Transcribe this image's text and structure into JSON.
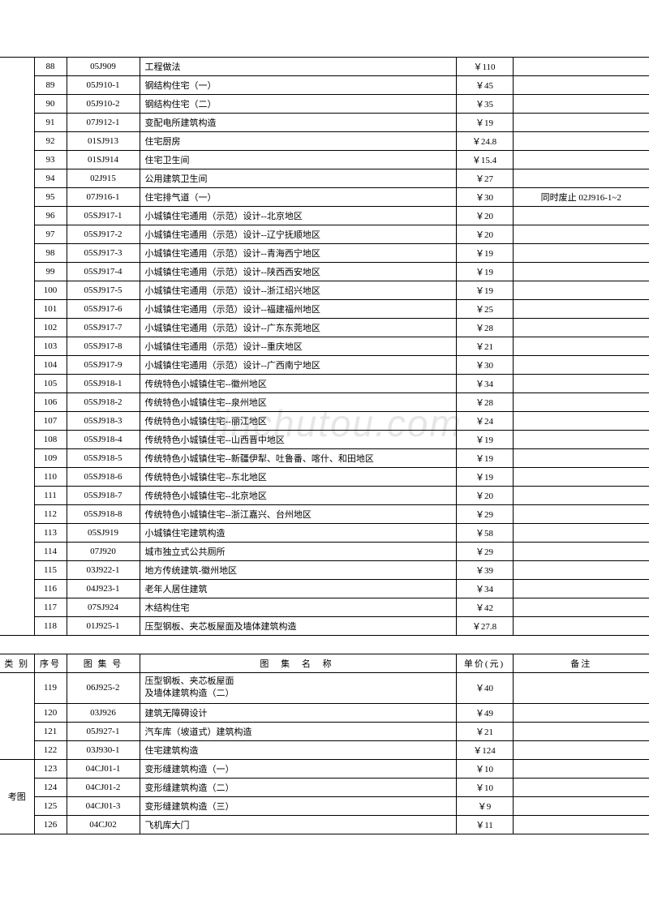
{
  "watermark": "jinchutou.com",
  "table1": {
    "rows": [
      {
        "idx": "88",
        "code": "05J909",
        "name": "工程做法",
        "price": "￥110",
        "note": ""
      },
      {
        "idx": "89",
        "code": "05J910-1",
        "name": "钢结构住宅（一）",
        "price": "￥45",
        "note": ""
      },
      {
        "idx": "90",
        "code": "05J910-2",
        "name": "钢结构住宅（二）",
        "price": "￥35",
        "note": ""
      },
      {
        "idx": "91",
        "code": "07J912-1",
        "name": "变配电所建筑构造",
        "price": "￥19",
        "note": ""
      },
      {
        "idx": "92",
        "code": "01SJ913",
        "name": "住宅厨房",
        "price": "￥24.8",
        "note": ""
      },
      {
        "idx": "93",
        "code": "01SJ914",
        "name": "住宅卫生间",
        "price": "￥15.4",
        "note": ""
      },
      {
        "idx": "94",
        "code": "02J915",
        "name": "公用建筑卫生间",
        "price": "￥27",
        "note": ""
      },
      {
        "idx": "95",
        "code": "07J916-1",
        "name": "住宅排气道（一）",
        "price": "￥30",
        "note": "同时废止 02J916-1~2"
      },
      {
        "idx": "96",
        "code": "05SJ917-1",
        "name": "小城镇住宅通用（示范）设计--北京地区",
        "price": "￥20",
        "note": ""
      },
      {
        "idx": "97",
        "code": "05SJ917-2",
        "name": "小城镇住宅通用（示范）设计--辽宁抚顺地区",
        "price": "￥20",
        "note": ""
      },
      {
        "idx": "98",
        "code": "05SJ917-3",
        "name": "小城镇住宅通用（示范）设计--青海西宁地区",
        "price": "￥19",
        "note": ""
      },
      {
        "idx": "99",
        "code": "05SJ917-4",
        "name": "小城镇住宅通用（示范）设计--陕西西安地区",
        "price": "￥19",
        "note": ""
      },
      {
        "idx": "100",
        "code": "05SJ917-5",
        "name": "小城镇住宅通用（示范）设计--浙江绍兴地区",
        "price": "￥19",
        "note": ""
      },
      {
        "idx": "101",
        "code": "05SJ917-6",
        "name": "小城镇住宅通用（示范）设计--福建福州地区",
        "price": "￥25",
        "note": ""
      },
      {
        "idx": "102",
        "code": "05SJ917-7",
        "name": "小城镇住宅通用（示范）设计--广东东莞地区",
        "price": "￥28",
        "note": ""
      },
      {
        "idx": "103",
        "code": "05SJ917-8",
        "name": "小城镇住宅通用（示范）设计--重庆地区",
        "price": "￥21",
        "note": ""
      },
      {
        "idx": "104",
        "code": "05SJ917-9",
        "name": "小城镇住宅通用（示范）设计--广西南宁地区",
        "price": "￥30",
        "note": ""
      },
      {
        "idx": "105",
        "code": "05SJ918-1",
        "name": "传统特色小城镇住宅--徽州地区",
        "price": "￥34",
        "note": ""
      },
      {
        "idx": "106",
        "code": "05SJ918-2",
        "name": "传统特色小城镇住宅--泉州地区",
        "price": "￥28",
        "note": ""
      },
      {
        "idx": "107",
        "code": "05SJ918-3",
        "name": "传统特色小城镇住宅--丽江地区",
        "price": "￥24",
        "note": ""
      },
      {
        "idx": "108",
        "code": "05SJ918-4",
        "name": "传统特色小城镇住宅--山西晋中地区",
        "price": "￥19",
        "note": ""
      },
      {
        "idx": "109",
        "code": "05SJ918-5",
        "name": "传统特色小城镇住宅--新疆伊犁、吐鲁番、喀什、和田地区",
        "price": "￥19",
        "note": ""
      },
      {
        "idx": "110",
        "code": "05SJ918-6",
        "name": "传统特色小城镇住宅--东北地区",
        "price": "￥19",
        "note": ""
      },
      {
        "idx": "111",
        "code": "05SJ918-7",
        "name": "传统特色小城镇住宅--北京地区",
        "price": "￥20",
        "note": ""
      },
      {
        "idx": "112",
        "code": "05SJ918-8",
        "name": "传统特色小城镇住宅--浙江嘉兴、台州地区",
        "price": "￥29",
        "note": ""
      },
      {
        "idx": "113",
        "code": "05SJ919",
        "name": "小城镇住宅建筑构造",
        "price": "￥58",
        "note": ""
      },
      {
        "idx": "114",
        "code": "07J920",
        "name": "城市独立式公共厕所",
        "price": "￥29",
        "note": ""
      },
      {
        "idx": "115",
        "code": "03J922-1",
        "name": "地方传统建筑-徽州地区",
        "price": "￥39",
        "note": ""
      },
      {
        "idx": "116",
        "code": "04J923-1",
        "name": "老年人居住建筑",
        "price": "￥34",
        "note": ""
      },
      {
        "idx": "117",
        "code": "07SJ924",
        "name": "木结构住宅",
        "price": "￥42",
        "note": ""
      },
      {
        "idx": "118",
        "code": "01J925-1",
        "name": "压型钢板、夹芯板屋面及墙体建筑构造",
        "price": "￥27.8",
        "note": ""
      }
    ]
  },
  "table2": {
    "header": {
      "cat": "类 别",
      "idx": "序号",
      "code": "图 集 号",
      "name": "图 集 名 称",
      "price": "单价(元)",
      "note": "备注"
    },
    "cat_label": "考图",
    "rows_a": [
      {
        "idx": "119",
        "code": "06J925-2",
        "name": "压型钢板、夹芯板屋面\n及墙体建筑构造（二）",
        "price": "￥40",
        "note": ""
      },
      {
        "idx": "120",
        "code": "03J926",
        "name": "建筑无障碍设计",
        "price": "￥49",
        "note": ""
      },
      {
        "idx": "121",
        "code": "05J927-1",
        "name": "汽车库（坡道式）建筑构造",
        "price": "￥21",
        "note": ""
      },
      {
        "idx": "122",
        "code": "03J930-1",
        "name": "住宅建筑构造",
        "price": "￥124",
        "note": ""
      }
    ],
    "rows_b": [
      {
        "idx": "123",
        "code": "04CJ01-1",
        "name": "变形缝建筑构造（一）",
        "price": "￥10",
        "note": ""
      },
      {
        "idx": "124",
        "code": "04CJ01-2",
        "name": "变形缝建筑构造（二）",
        "price": "￥10",
        "note": ""
      },
      {
        "idx": "125",
        "code": "04CJ01-3",
        "name": "变形缝建筑构造（三）",
        "price": "￥9",
        "note": ""
      },
      {
        "idx": "126",
        "code": "04CJ02",
        "name": "飞机库大门",
        "price": "￥11",
        "note": ""
      }
    ]
  }
}
